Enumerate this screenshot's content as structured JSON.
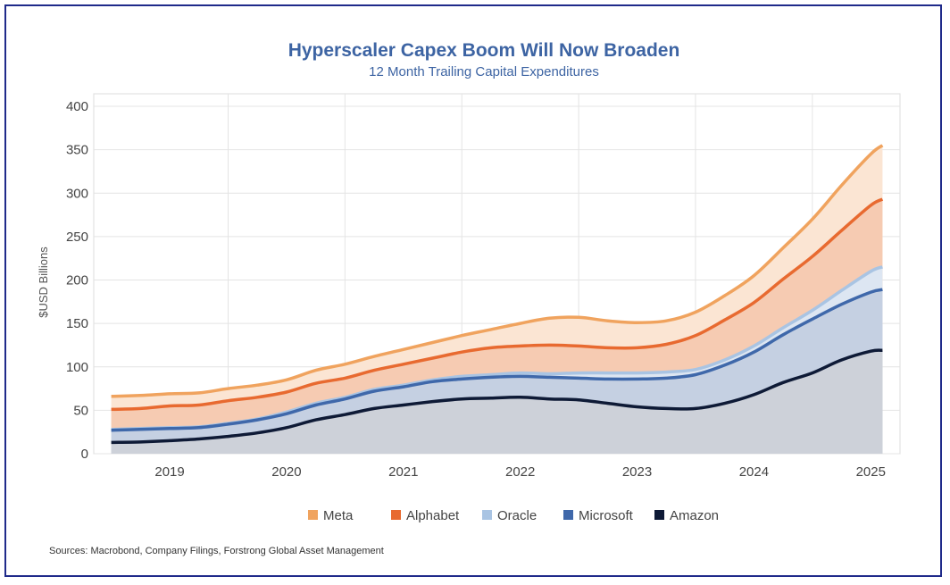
{
  "chart_data": {
    "type": "area",
    "title": "Hyperscaler Capex Boom Will Now Broaden",
    "subtitle": "12 Month Trailing Capital Expenditures",
    "ylabel": "$USD Billions",
    "xlabel": "",
    "ylim": [
      0,
      400
    ],
    "yticks": [
      0,
      50,
      100,
      150,
      200,
      250,
      300,
      350,
      400
    ],
    "xlim": [
      2018.35,
      2025.25
    ],
    "xticks": [
      2019,
      2020,
      2021,
      2022,
      2023,
      2024,
      2025
    ],
    "x_tick_labels": [
      "2019",
      "2020",
      "2021",
      "2022",
      "2023",
      "2024",
      "2025"
    ],
    "grid": true,
    "legend_position": "bottom",
    "stacked": true,
    "x": [
      2018.5,
      2018.75,
      2019.0,
      2019.25,
      2019.5,
      2019.75,
      2020.0,
      2020.25,
      2020.5,
      2020.75,
      2021.0,
      2021.25,
      2021.5,
      2021.75,
      2022.0,
      2022.25,
      2022.5,
      2022.75,
      2023.0,
      2023.25,
      2023.5,
      2023.75,
      2024.0,
      2024.25,
      2024.5,
      2024.75,
      2025.0,
      2025.1
    ],
    "series": [
      {
        "name": "Amazon",
        "color": "#0e1a36",
        "values": [
          13,
          13.5,
          15,
          17,
          20,
          24,
          30,
          39,
          45,
          52,
          56,
          60,
          63,
          64,
          65,
          63,
          62,
          58,
          54,
          52,
          52,
          58,
          68,
          82,
          93,
          108,
          118,
          119
        ]
      },
      {
        "name": "Microsoft",
        "color": "#3f68aa",
        "values": [
          27,
          28,
          29,
          30,
          34,
          39,
          46,
          56,
          63,
          72,
          77,
          83,
          86,
          88,
          89,
          88,
          87,
          86,
          86,
          87,
          91,
          102,
          117,
          137,
          155,
          172,
          186,
          189
        ]
      },
      {
        "name": "Oracle",
        "color": "#a9c4e3",
        "values": [
          28,
          29,
          30,
          31,
          35,
          40,
          48,
          58,
          65,
          74,
          79,
          85,
          89,
          91,
          93,
          92,
          93,
          93,
          93,
          94,
          97,
          108,
          124,
          145,
          165,
          188,
          210,
          215
        ]
      },
      {
        "name": "Alphabet",
        "color": "#e86a30",
        "values": [
          51,
          52,
          55,
          56,
          61,
          65,
          71,
          81,
          87,
          96,
          103,
          110,
          117,
          122,
          124,
          125,
          124,
          122,
          122,
          126,
          136,
          154,
          174,
          201,
          227,
          257,
          286,
          293
        ]
      },
      {
        "name": "Meta",
        "color": "#f0a35e",
        "values": [
          66,
          67,
          69,
          70,
          75,
          79,
          85,
          96,
          103,
          112,
          120,
          128,
          136,
          143,
          150,
          156,
          157,
          153,
          151,
          153,
          163,
          182,
          205,
          237,
          270,
          309,
          345,
          355
        ]
      }
    ],
    "legend_order": [
      "Meta",
      "Alphabet",
      "Oracle",
      "Microsoft",
      "Amazon"
    ]
  },
  "source": "Sources: Macrobond, Company Filings, Forstrong Global Asset Management",
  "colors": {
    "title": "#3d64a3",
    "frame_border": "#1f2a8a",
    "grid": "#e4e4e4",
    "axis_text": "#444444"
  }
}
